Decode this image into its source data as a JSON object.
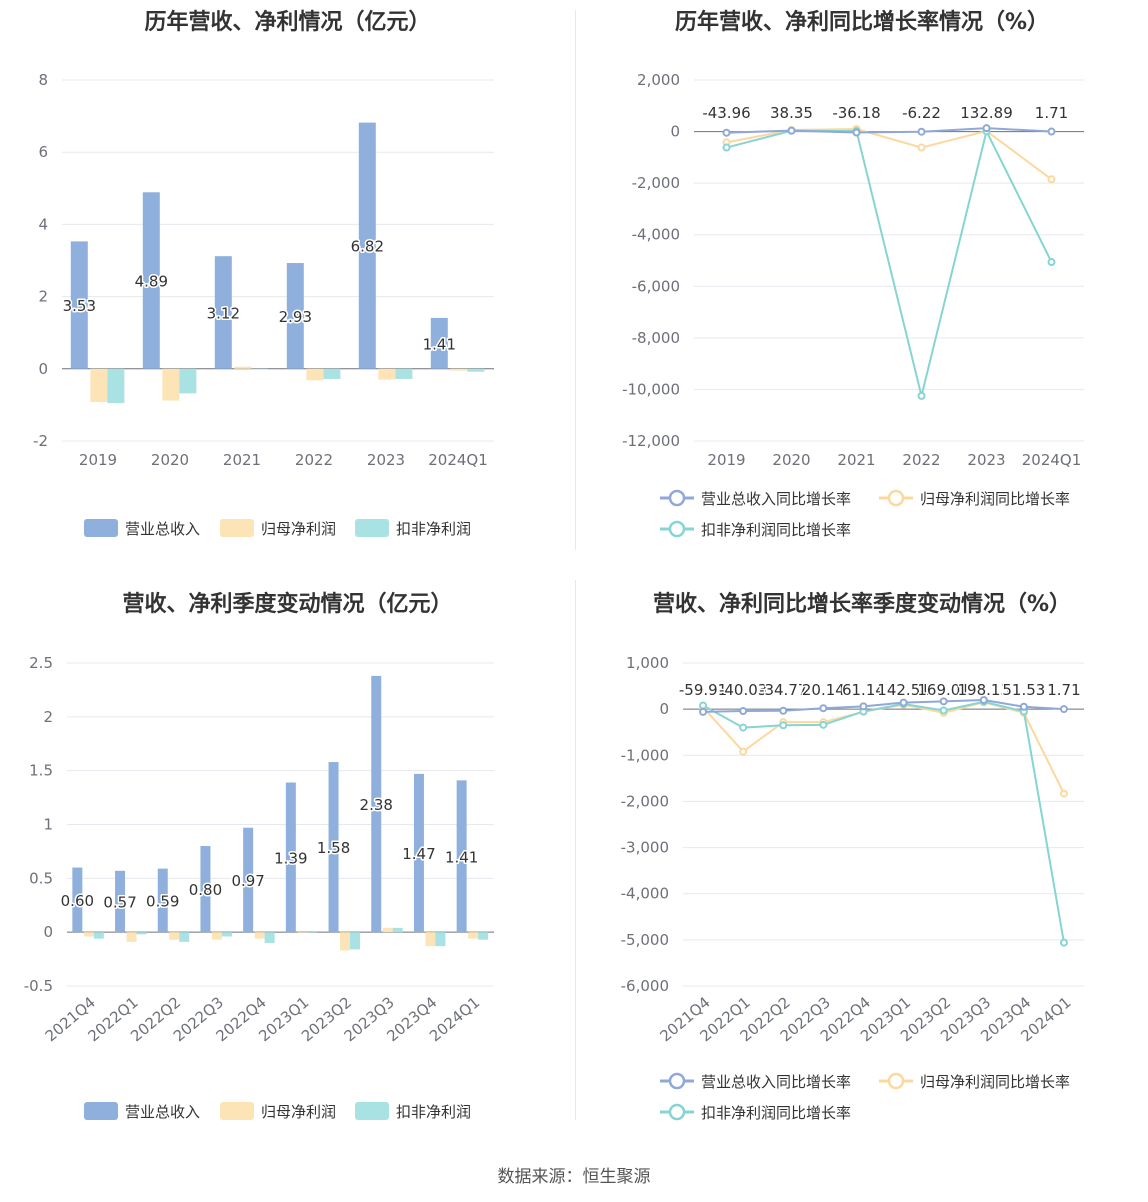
{
  "colors": {
    "revenue": "#8fb0dd",
    "parent_profit": "#fde4b7",
    "deducted_profit": "#a8e2e2",
    "rev_line": "#8fa8d8",
    "parent_line": "#fdd89d",
    "deducted_line": "#86d4d4",
    "grid": "#e6e8ef",
    "axis": "#6e7079"
  },
  "charts": {
    "annual_amount": {
      "title": "历年营收、净利情况（亿元）",
      "legend": [
        "营业总收入",
        "归母净利润",
        "扣非净利润"
      ]
    },
    "annual_growth": {
      "title": "历年营收、净利同比增长率情况（%）",
      "legend": [
        "营业总收入同比增长率",
        "归母净利润同比增长率",
        "扣非净利润同比增长率"
      ]
    },
    "quarterly_amount": {
      "title": "营收、净利季度变动情况（亿元）",
      "legend": [
        "营业总收入",
        "归母净利润",
        "扣非净利润"
      ]
    },
    "quarterly_growth": {
      "title": "营收、净利同比增长率季度变动情况（%）",
      "legend": [
        "营业总收入同比增长率",
        "归母净利润同比增长率",
        "扣非净利润同比增长率"
      ]
    }
  },
  "source": "数据来源：恒生聚源",
  "chart_data": [
    {
      "type": "bar",
      "title": "历年营收、净利情况（亿元）",
      "categories": [
        "2019",
        "2020",
        "2021",
        "2022",
        "2023",
        "2024Q1"
      ],
      "ylim": [
        -2,
        8
      ],
      "yticks": [
        "-2",
        "0",
        "2",
        "4",
        "6",
        "8"
      ],
      "series": [
        {
          "name": "营业总收入",
          "values": [
            3.53,
            4.89,
            3.12,
            2.93,
            6.82,
            1.41
          ],
          "labels": [
            "3.53",
            "4.89",
            "3.12",
            "2.93",
            "6.82",
            "1.41"
          ]
        },
        {
          "name": "归母净利润",
          "values": [
            -0.92,
            -0.88,
            0.06,
            -0.32,
            -0.3,
            -0.05
          ]
        },
        {
          "name": "扣非净利润",
          "values": [
            -0.95,
            -0.68,
            -0.02,
            -0.28,
            -0.28,
            -0.08
          ]
        }
      ],
      "grid": true,
      "legend_position": "bottom"
    },
    {
      "type": "line",
      "title": "历年营收、净利同比增长率情况（%）",
      "categories": [
        "2019",
        "2020",
        "2021",
        "2022",
        "2023",
        "2024Q1"
      ],
      "ylim": [
        -12000,
        2000
      ],
      "yticks": [
        "-12,000",
        "-10,000",
        "-8,000",
        "-6,000",
        "-4,000",
        "-2,000",
        "0",
        "2,000"
      ],
      "series": [
        {
          "name": "营业总收入同比增长率",
          "values": [
            -43.96,
            38.35,
            -36.18,
            -6.22,
            132.89,
            1.71
          ],
          "labels": [
            "-43.96",
            "38.35",
            "-36.18",
            "-6.22",
            "132.89",
            "1.71"
          ]
        },
        {
          "name": "归母净利润同比增长率",
          "values": [
            -420,
            60,
            100,
            -620,
            20,
            -1850
          ]
        },
        {
          "name": "扣非净利润同比增长率",
          "values": [
            -620,
            30,
            20,
            -10250,
            10,
            -5060
          ]
        }
      ],
      "grid": true,
      "legend_position": "bottom"
    },
    {
      "type": "bar",
      "title": "营收、净利季度变动情况（亿元）",
      "categories": [
        "2021Q4",
        "2022Q1",
        "2022Q2",
        "2022Q3",
        "2022Q4",
        "2023Q1",
        "2023Q2",
        "2023Q3",
        "2023Q4",
        "2024Q1"
      ],
      "ylim": [
        -0.5,
        2.5
      ],
      "yticks": [
        "-0.5",
        "0",
        "0.5",
        "1",
        "1.5",
        "2",
        "2.5"
      ],
      "series": [
        {
          "name": "营业总收入",
          "values": [
            0.6,
            0.57,
            0.59,
            0.8,
            0.97,
            1.39,
            1.58,
            2.38,
            1.47,
            1.41
          ],
          "labels": [
            "0.60",
            "0.57",
            "0.59",
            "0.80",
            "0.97",
            "1.39",
            "1.58",
            "2.38",
            "1.47",
            "1.41"
          ]
        },
        {
          "name": "归母净利润",
          "values": [
            -0.04,
            -0.09,
            -0.07,
            -0.07,
            -0.06,
            0.0,
            -0.17,
            0.04,
            -0.13,
            -0.06
          ]
        },
        {
          "name": "扣非净利润",
          "values": [
            -0.06,
            -0.02,
            -0.09,
            -0.04,
            -0.1,
            0.0,
            -0.16,
            0.04,
            -0.13,
            -0.07
          ]
        }
      ],
      "grid": true,
      "legend_position": "bottom"
    },
    {
      "type": "line",
      "title": "营收、净利同比增长率季度变动情况（%）",
      "categories": [
        "2021Q4",
        "2022Q1",
        "2022Q2",
        "2022Q3",
        "2022Q4",
        "2023Q1",
        "2023Q2",
        "2023Q3",
        "2023Q4",
        "2024Q1"
      ],
      "ylim": [
        -6000,
        1000
      ],
      "yticks": [
        "-6,000",
        "-5,000",
        "-4,000",
        "-3,000",
        "-2,000",
        "-1,000",
        "0",
        "1,000"
      ],
      "series": [
        {
          "name": "营业总收入同比增长率",
          "values": [
            -59.91,
            -40.03,
            -34.77,
            20.14,
            61.14,
            142.51,
            169.01,
            198.13,
            51.53,
            1.71
          ],
          "labels": [
            "-59.91",
            "-40.03",
            "-34.77",
            "20.14",
            "61.14",
            "142.51",
            "169.01",
            "198.13",
            "51.53",
            "1.71"
          ]
        },
        {
          "name": "归母净利润同比增长率",
          "values": [
            40,
            -920,
            -280,
            -280,
            -60,
            100,
            -80,
            150,
            -80,
            -1830
          ]
        },
        {
          "name": "扣非净利润同比增长率",
          "values": [
            80,
            -400,
            -350,
            -340,
            -50,
            110,
            -30,
            160,
            -50,
            -5060
          ]
        }
      ],
      "grid": true,
      "legend_position": "bottom"
    }
  ]
}
